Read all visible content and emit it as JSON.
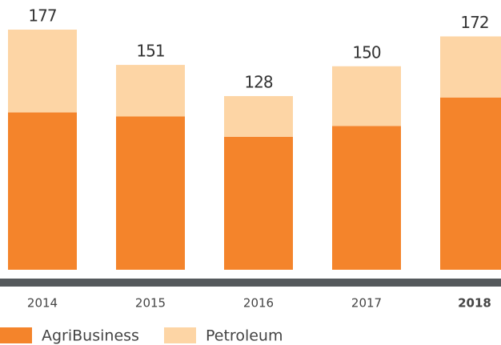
{
  "chart_data": {
    "type": "stacked_bar",
    "categories": [
      "2014",
      "2015",
      "2016",
      "2017",
      "2018"
    ],
    "series": [
      {
        "name": "AgriBusiness",
        "color": "#f4842b",
        "values": [
          116,
          113,
          98,
          106,
          127
        ]
      },
      {
        "name": "Petroleum",
        "color": "#fdd5a5",
        "values": [
          61,
          38,
          30,
          44,
          45
        ]
      }
    ],
    "totals": [
      177,
      151,
      128,
      150,
      172
    ],
    "highlight": 4
  }
}
